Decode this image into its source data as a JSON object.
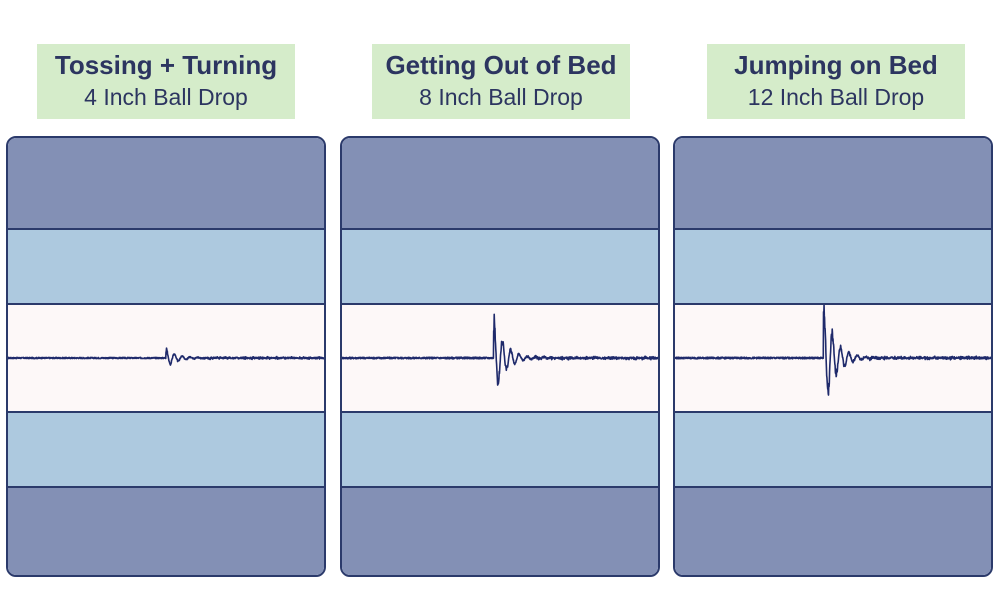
{
  "panels": [
    {
      "title": "Tossing + Turning",
      "subtitle": "4 Inch Ball Drop",
      "color": "#1f2a6b"
    },
    {
      "title": "Getting Out of Bed",
      "subtitle": "8 Inch Ball Drop",
      "color": "#1f2a6b"
    },
    {
      "title": "Jumping on Bed",
      "subtitle": "12 Inch Ball Drop",
      "color": "#1f2a6b"
    }
  ],
  "chart_data": [
    {
      "type": "line",
      "title": "Tossing + Turning",
      "subtitle": "4 Inch Ball Drop",
      "grid": false,
      "legend": "none",
      "ylim": [
        -1,
        1
      ],
      "xlim": [
        0,
        1
      ],
      "wave": {
        "impact_x": 0.5,
        "peak_amplitude": 0.2,
        "decay": 0.035,
        "frequency": 400,
        "baseline_noise": 0.015
      }
    },
    {
      "type": "line",
      "title": "Getting Out of Bed",
      "subtitle": "8 Inch Ball Drop",
      "grid": false,
      "legend": "none",
      "ylim": [
        -1,
        1
      ],
      "xlim": [
        0,
        1
      ],
      "wave": {
        "impact_x": 0.48,
        "peak_amplitude": 0.9,
        "decay": 0.035,
        "frequency": 380,
        "baseline_noise": 0.02
      }
    },
    {
      "type": "line",
      "title": "Jumping on Bed",
      "subtitle": "12 Inch Ball Drop",
      "grid": false,
      "legend": "none",
      "ylim": [
        -1,
        1
      ],
      "xlim": [
        0,
        1
      ],
      "wave": {
        "impact_x": 0.47,
        "peak_amplitude": 1.25,
        "decay": 0.035,
        "frequency": 380,
        "baseline_noise": 0.02
      }
    }
  ]
}
